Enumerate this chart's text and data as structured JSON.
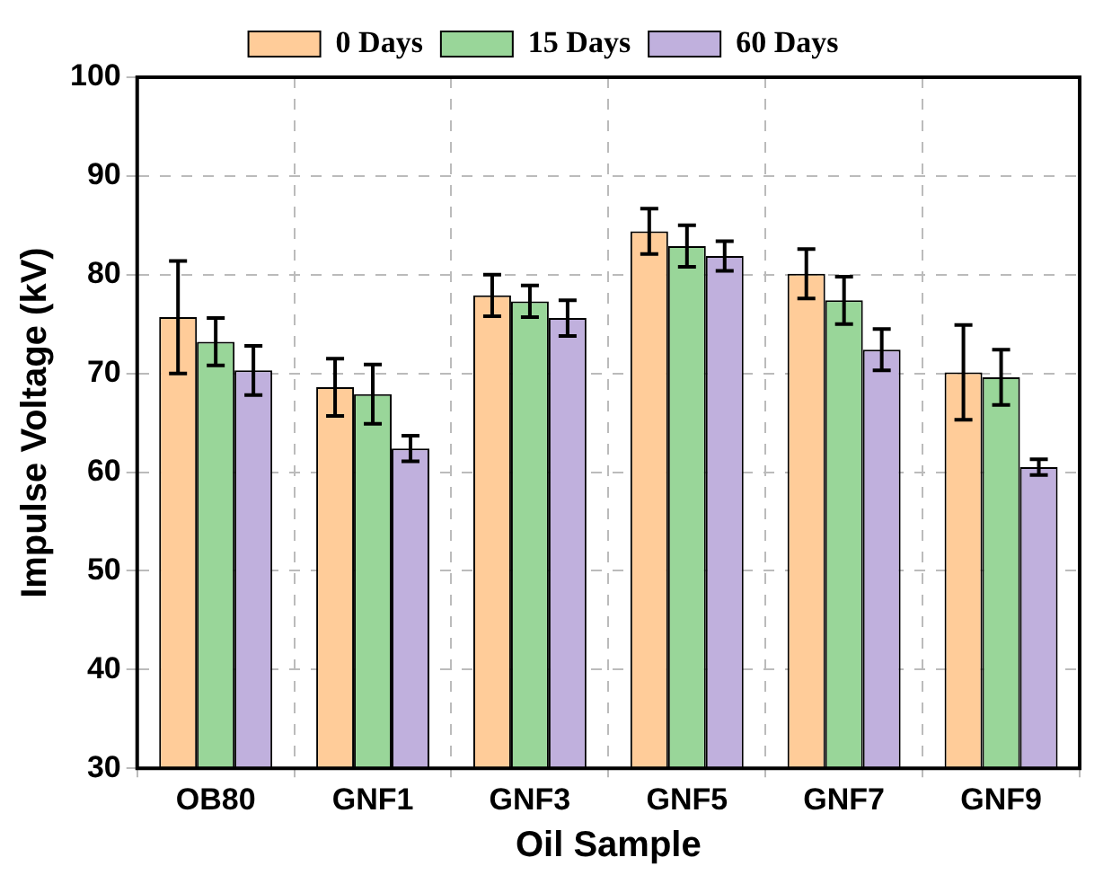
{
  "chart_data": {
    "type": "bar",
    "xlabel": "Oil Sample",
    "ylabel": "Impulse Voltage (kV)",
    "categories": [
      "OB80",
      "GNF1",
      "GNF3",
      "GNF5",
      "GNF7",
      "GNF9"
    ],
    "series": [
      {
        "name": "0 Days",
        "color": "#ffcc99",
        "values": [
          75.7,
          68.6,
          77.9,
          84.4,
          80.1,
          70.1
        ],
        "errors": [
          5.7,
          2.9,
          2.1,
          2.3,
          2.5,
          4.8
        ]
      },
      {
        "name": "15 Days",
        "color": "#99d699",
        "values": [
          73.2,
          67.9,
          77.3,
          82.9,
          77.4,
          69.6
        ],
        "errors": [
          2.4,
          3.0,
          1.6,
          2.1,
          2.4,
          2.8
        ]
      },
      {
        "name": "60 Days",
        "color": "#c0b0dd",
        "values": [
          70.3,
          62.4,
          75.6,
          81.9,
          72.4,
          60.5
        ],
        "errors": [
          2.5,
          1.3,
          1.8,
          1.5,
          2.1,
          0.8
        ]
      }
    ],
    "ylim": [
      30,
      100
    ],
    "yticks": [
      30,
      40,
      50,
      60,
      70,
      80,
      90,
      100
    ],
    "grid": true,
    "legend": "top"
  }
}
